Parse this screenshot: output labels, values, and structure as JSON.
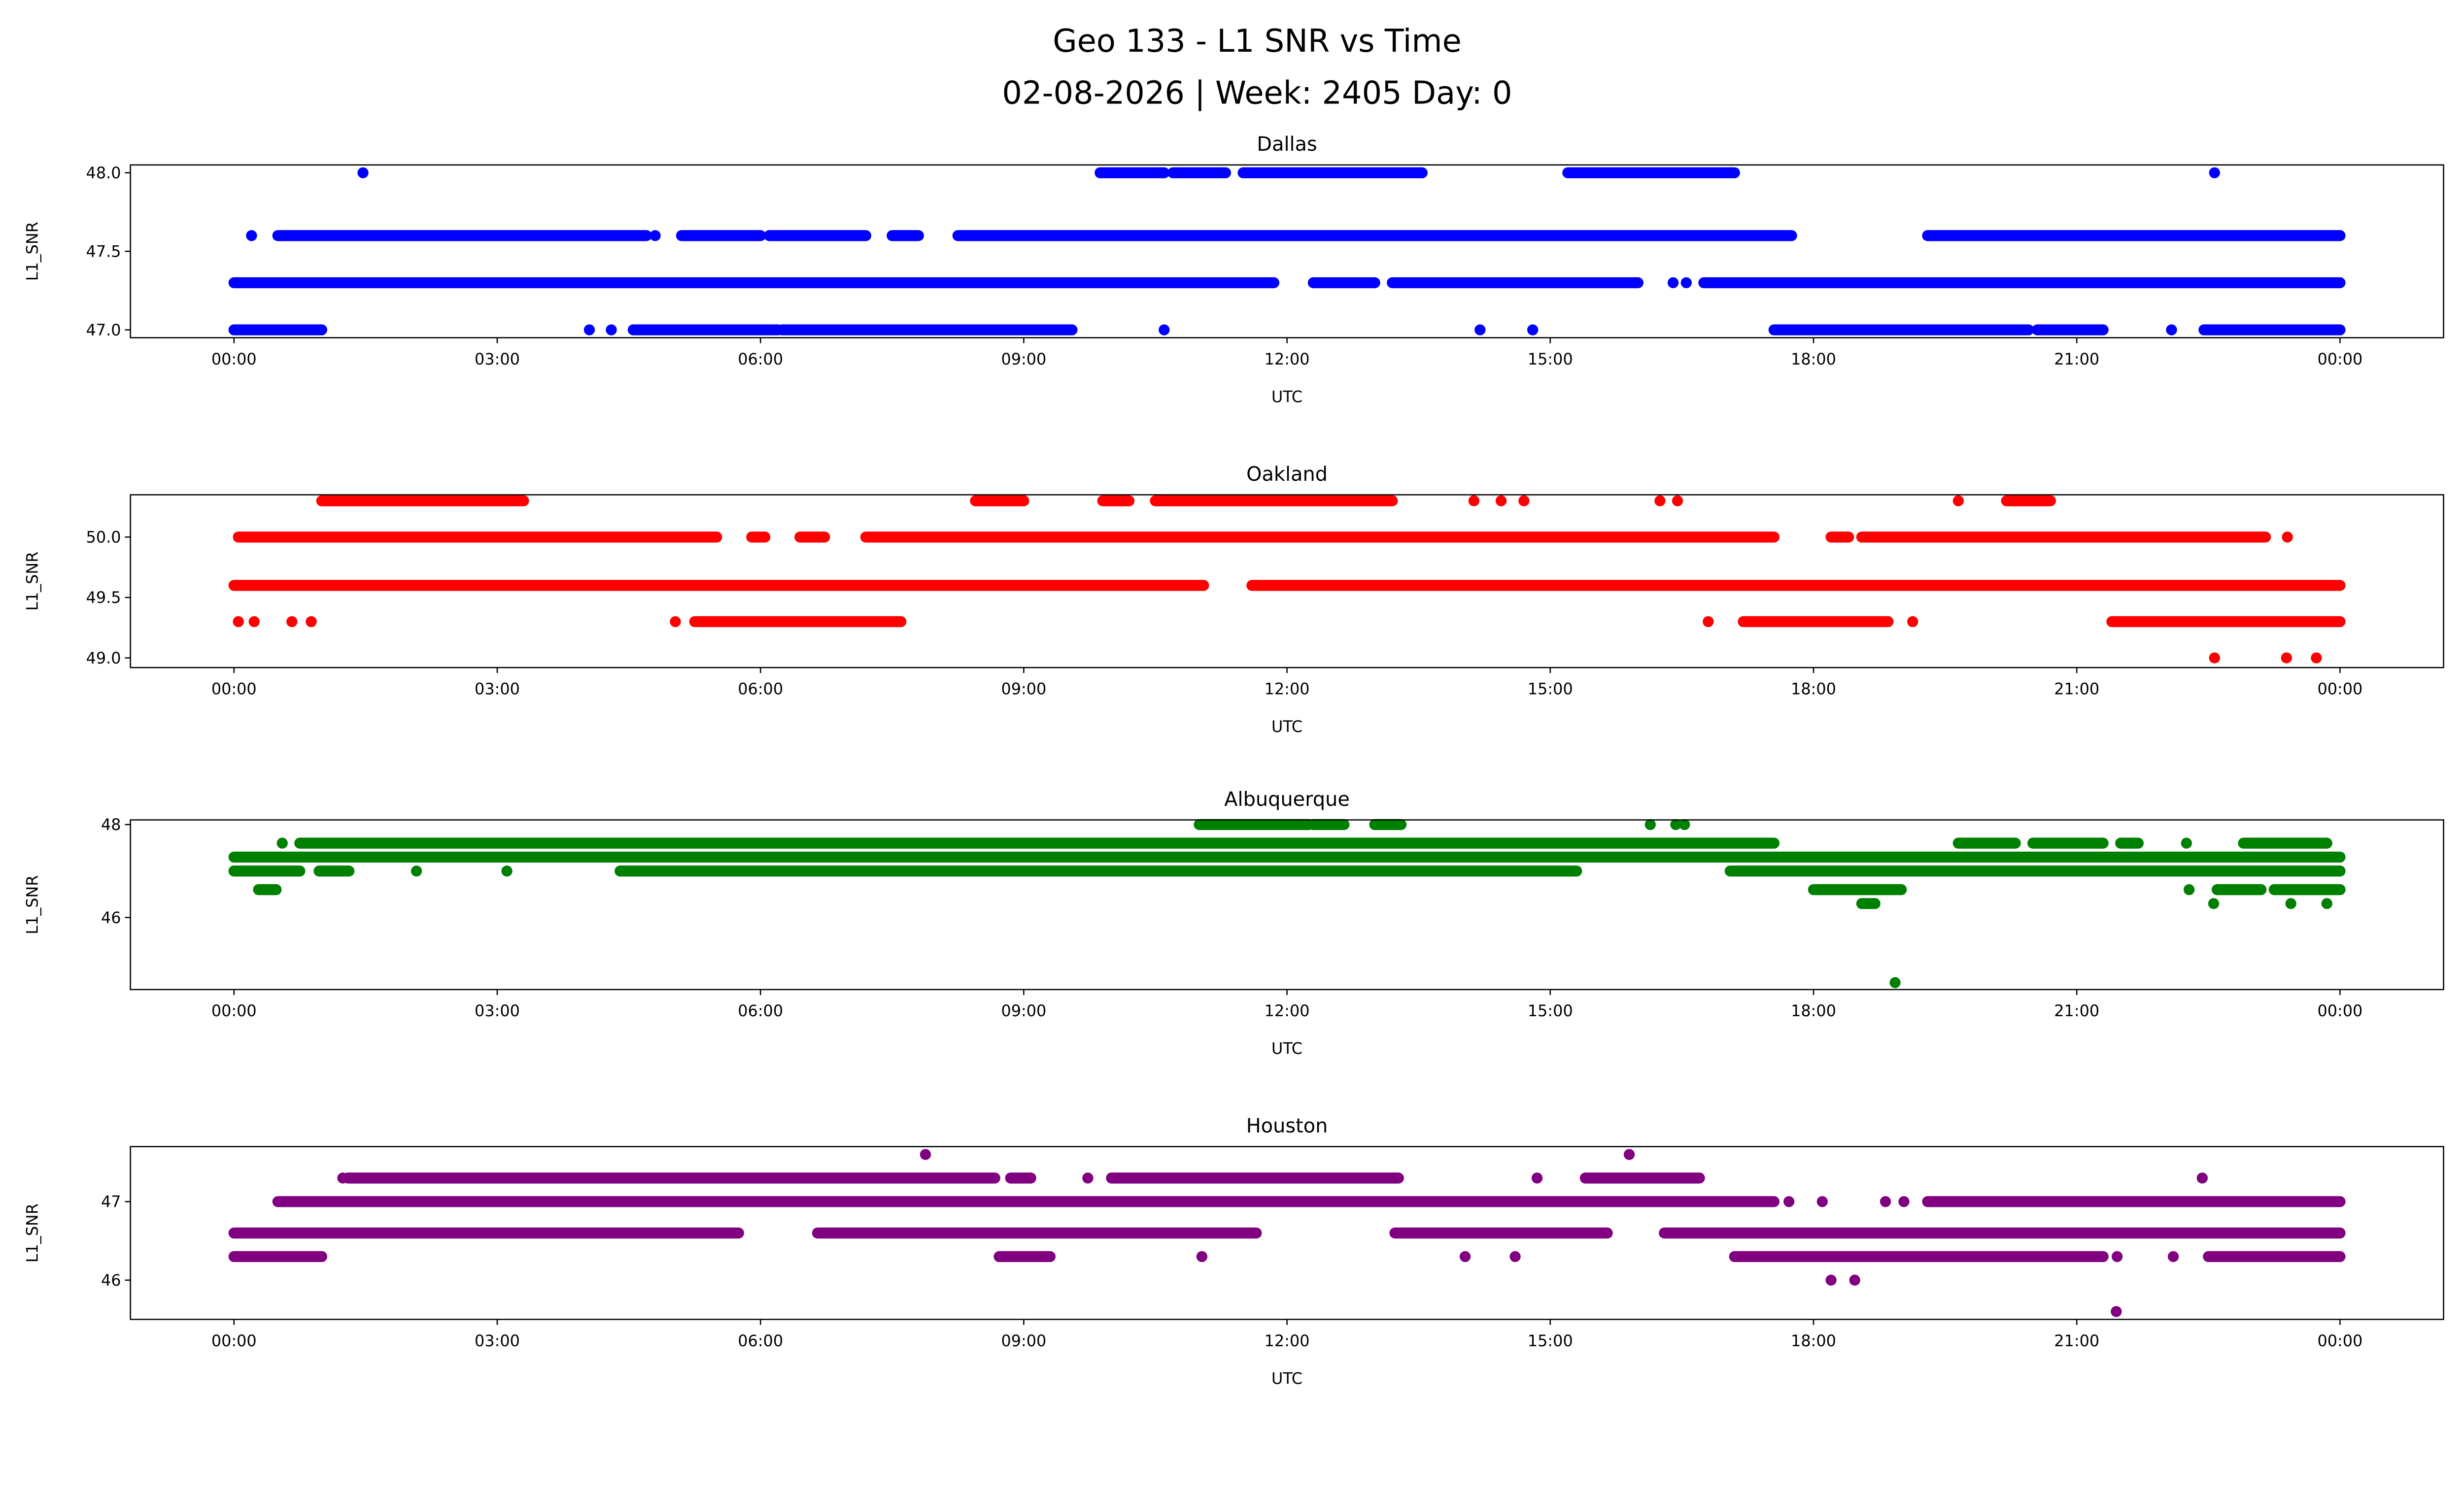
{
  "chart_data": [
    {
      "type": "scatter",
      "title": "Dallas",
      "xlabel": "UTC",
      "ylabel": "L1_SNR",
      "color": "#0000ff",
      "xlim": [
        -1.18,
        25.18
      ],
      "ylim": [
        46.95,
        48.05
      ],
      "yticks": [
        47.0,
        47.5,
        48.0
      ],
      "ytick_labels": [
        "47.0",
        "47.5",
        "48.0"
      ],
      "levels": [
        {
          "y": 48.0,
          "runs": [
            [
              9.87,
              10.6
            ],
            [
              10.7,
              11.3
            ],
            [
              11.5,
              13.54
            ],
            [
              15.2,
              17.1
            ]
          ],
          "points": [
            1.47,
            22.57
          ]
        },
        {
          "y": 47.6,
          "runs": [
            [
              0.5,
              4.7
            ],
            [
              5.1,
              6.0
            ],
            [
              6.1,
              7.2
            ],
            [
              7.5,
              7.8
            ],
            [
              8.25,
              17.75
            ],
            [
              19.3,
              24.0
            ]
          ],
          "points": [
            0.2,
            4.8
          ]
        },
        {
          "y": 47.3,
          "runs": [
            [
              0.0,
              11.85
            ],
            [
              12.3,
              13.0
            ],
            [
              13.2,
              16.0
            ],
            [
              16.75,
              24.0
            ]
          ],
          "points": [
            16.4,
            16.55
          ]
        },
        {
          "y": 47.0,
          "runs": [
            [
              0.0,
              1.0
            ],
            [
              4.55,
              6.2
            ],
            [
              6.25,
              9.55
            ],
            [
              17.55,
              20.45
            ],
            [
              20.55,
              21.3
            ],
            [
              22.45,
              24.0
            ]
          ],
          "points": [
            4.05,
            4.3,
            10.6,
            14.2,
            14.8,
            22.08
          ]
        }
      ]
    },
    {
      "type": "scatter",
      "title": "Oakland",
      "xlabel": "UTC",
      "ylabel": "L1_SNR",
      "color": "#ff0000",
      "xlim": [
        -1.18,
        25.18
      ],
      "ylim": [
        48.92,
        50.35
      ],
      "yticks": [
        49.0,
        49.5,
        50.0
      ],
      "ytick_labels": [
        "49.0",
        "49.5",
        "50.0"
      ],
      "levels": [
        {
          "y": 50.3,
          "runs": [
            [
              1.0,
              3.3
            ],
            [
              8.45,
              9.0
            ],
            [
              9.9,
              10.2
            ],
            [
              10.5,
              13.2
            ],
            [
              20.2,
              20.7
            ]
          ],
          "points": [
            14.13,
            14.44,
            14.7,
            16.25,
            16.45,
            19.65
          ]
        },
        {
          "y": 50.0,
          "runs": [
            [
              0.05,
              5.5
            ],
            [
              5.9,
              6.05
            ],
            [
              6.45,
              6.73
            ],
            [
              7.2,
              17.55
            ],
            [
              18.2,
              18.4
            ],
            [
              18.55,
              23.15
            ]
          ],
          "points": [
            23.4
          ]
        },
        {
          "y": 49.6,
          "runs": [
            [
              0.0,
              11.05
            ],
            [
              11.6,
              24.0
            ]
          ],
          "points": []
        },
        {
          "y": 49.3,
          "runs": [
            [
              5.25,
              7.6
            ],
            [
              17.2,
              18.85
            ],
            [
              21.4,
              24.0
            ]
          ],
          "points": [
            0.05,
            0.23,
            0.66,
            0.88,
            5.03,
            16.8,
            19.13
          ]
        },
        {
          "y": 49.0,
          "runs": [],
          "points": [
            22.57,
            23.39,
            23.73
          ]
        }
      ]
    },
    {
      "type": "scatter",
      "title": "Albuquerque",
      "xlabel": "UTC",
      "ylabel": "L1_SNR",
      "color": "#008000",
      "xlim": [
        -1.18,
        25.18
      ],
      "ylim": [
        44.45,
        48.1
      ],
      "yticks": [
        46,
        48
      ],
      "ytick_labels": [
        "46",
        "48"
      ],
      "levels": [
        {
          "y": 48.0,
          "runs": [
            [
              11.0,
              12.25
            ],
            [
              12.3,
              12.65
            ],
            [
              13.0,
              13.3
            ]
          ],
          "points": [
            16.14,
            16.43,
            16.53
          ]
        },
        {
          "y": 47.6,
          "runs": [
            [
              0.75,
              17.55
            ],
            [
              19.65,
              20.3
            ],
            [
              20.5,
              21.3
            ],
            [
              21.5,
              21.7
            ],
            [
              22.9,
              23.85
            ]
          ],
          "points": [
            0.55,
            22.25
          ]
        },
        {
          "y": 47.3,
          "runs": [
            [
              0.0,
              24.0
            ]
          ],
          "points": []
        },
        {
          "y": 47.0,
          "runs": [
            [
              0.0,
              0.75
            ],
            [
              0.97,
              1.31
            ],
            [
              4.4,
              15.3
            ],
            [
              17.05,
              24.0
            ]
          ],
          "points": [
            2.08,
            3.11
          ]
        },
        {
          "y": 46.6,
          "runs": [
            [
              0.28,
              0.48
            ],
            [
              18.0,
              19.0
            ],
            [
              22.6,
              23.1
            ],
            [
              23.25,
              24.0
            ]
          ],
          "points": [
            22.28
          ]
        },
        {
          "y": 46.3,
          "runs": [
            [
              18.55,
              18.7
            ]
          ],
          "points": [
            22.56,
            23.44,
            23.85
          ]
        },
        {
          "y": 44.6,
          "runs": [],
          "points": [
            18.93
          ]
        }
      ]
    },
    {
      "type": "scatter",
      "title": "Houston",
      "xlabel": "UTC",
      "ylabel": "L1_SNR",
      "color": "#800080",
      "xlim": [
        -1.18,
        25.18
      ],
      "ylim": [
        45.5,
        47.7
      ],
      "yticks": [
        46,
        47
      ],
      "ytick_labels": [
        "46",
        "47"
      ],
      "levels": [
        {
          "y": 47.6,
          "runs": [],
          "points": [
            7.88,
            15.9
          ]
        },
        {
          "y": 47.3,
          "runs": [
            [
              1.3,
              8.67
            ],
            [
              8.85,
              9.08
            ],
            [
              10.0,
              13.27
            ],
            [
              15.4,
              16.7
            ]
          ],
          "points": [
            1.24,
            9.73,
            14.85,
            22.43
          ]
        },
        {
          "y": 47.0,
          "runs": [
            [
              0.5,
              17.55
            ],
            [
              19.3,
              24.0
            ]
          ],
          "points": [
            17.72,
            18.1,
            18.82,
            19.03
          ]
        },
        {
          "y": 46.6,
          "runs": [
            [
              0.0,
              5.75
            ],
            [
              6.65,
              11.65
            ],
            [
              13.23,
              15.65
            ],
            [
              16.3,
              24.0
            ]
          ],
          "points": []
        },
        {
          "y": 46.3,
          "runs": [
            [
              0.0,
              1.0
            ],
            [
              8.72,
              9.3
            ],
            [
              17.1,
              21.3
            ],
            [
              22.5,
              24.0
            ]
          ],
          "points": [
            11.03,
            14.03,
            14.6,
            21.46,
            22.1
          ]
        },
        {
          "y": 46.0,
          "runs": [],
          "points": [
            18.2,
            18.47
          ]
        },
        {
          "y": 45.6,
          "runs": [],
          "points": [
            21.45
          ]
        }
      ]
    }
  ],
  "figure_title_line1": "Geo 133 - L1 SNR vs Time",
  "figure_title_line2": "02-08-2026 | Week: 2405 Day: 0",
  "xticks": [
    0,
    3,
    6,
    9,
    12,
    15,
    18,
    21,
    24
  ],
  "xtick_labels": [
    "00:00",
    "03:00",
    "06:00",
    "09:00",
    "12:00",
    "15:00",
    "18:00",
    "21:00",
    "00:00"
  ]
}
